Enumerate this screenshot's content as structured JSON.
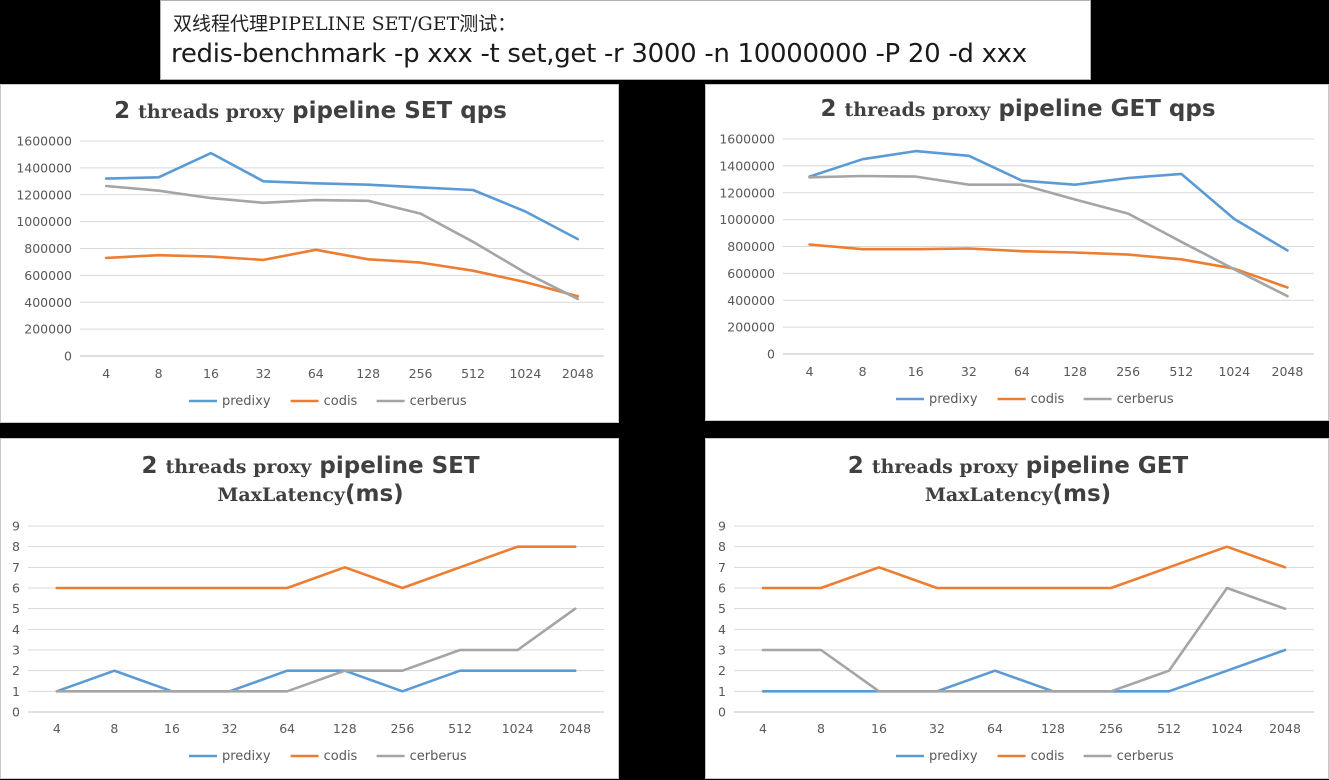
{
  "header": {
    "line1": "双线程代理PIPELINE SET/GET测试：",
    "line2": "redis-benchmark -p xxx -t set,get -r 3000 -n 10000000 -P 20 -d xxx"
  },
  "colors": {
    "predixy": "#5b9bd5",
    "codis": "#ed7d31",
    "cerberus": "#a5a5a5",
    "grid": "#d9d9d9",
    "text": "#595959"
  },
  "chart_data": [
    {
      "type": "line",
      "title": "2 threads proxy pipeline SET qps",
      "title_lines": [
        [
          {
            "t": "2 ",
            "f": "sans"
          },
          {
            "t": "threads proxy",
            "f": "serif"
          },
          {
            "t": " pipeline SET qps",
            "f": "sans"
          }
        ]
      ],
      "categories": [
        "4",
        "8",
        "16",
        "32",
        "64",
        "128",
        "256",
        "512",
        "1024",
        "2048"
      ],
      "yticks": [
        "0",
        "200000",
        "400000",
        "600000",
        "800000",
        "1000000",
        "1200000",
        "1400000",
        "1600000"
      ],
      "ylim": [
        0,
        1600000
      ],
      "grid": true,
      "legend_position": "bottom",
      "series": [
        {
          "name": "predixy",
          "values": [
            1320000,
            1330000,
            1510000,
            1300000,
            1285000,
            1275000,
            1255000,
            1235000,
            1075000,
            870000
          ]
        },
        {
          "name": "codis",
          "values": [
            730000,
            750000,
            740000,
            715000,
            790000,
            720000,
            695000,
            635000,
            550000,
            445000
          ]
        },
        {
          "name": "cerberus",
          "values": [
            1265000,
            1230000,
            1175000,
            1140000,
            1160000,
            1155000,
            1060000,
            850000,
            620000,
            425000
          ]
        }
      ]
    },
    {
      "type": "line",
      "title": "2 threads proxy pipeline GET qps",
      "title_lines": [
        [
          {
            "t": "2 ",
            "f": "sans"
          },
          {
            "t": "threads proxy",
            "f": "serif"
          },
          {
            "t": " pipeline GET qps",
            "f": "sans"
          }
        ]
      ],
      "categories": [
        "4",
        "8",
        "16",
        "32",
        "64",
        "128",
        "256",
        "512",
        "1024",
        "2048"
      ],
      "yticks": [
        "0",
        "200000",
        "400000",
        "600000",
        "800000",
        "1000000",
        "1200000",
        "1400000",
        "1600000"
      ],
      "ylim": [
        0,
        1600000
      ],
      "grid": true,
      "legend_position": "bottom",
      "series": [
        {
          "name": "predixy",
          "values": [
            1320000,
            1450000,
            1510000,
            1475000,
            1290000,
            1260000,
            1310000,
            1340000,
            1005000,
            770000
          ]
        },
        {
          "name": "codis",
          "values": [
            815000,
            780000,
            780000,
            785000,
            765000,
            755000,
            740000,
            705000,
            635000,
            495000
          ]
        },
        {
          "name": "cerberus",
          "values": [
            1315000,
            1325000,
            1320000,
            1260000,
            1260000,
            1150000,
            1045000,
            835000,
            630000,
            430000
          ]
        }
      ]
    },
    {
      "type": "line",
      "title": "2 threads proxy pipeline SET MaxLatency(ms)",
      "title_lines": [
        [
          {
            "t": "2 ",
            "f": "sans"
          },
          {
            "t": "threads proxy",
            "f": "serif"
          },
          {
            "t": " pipeline SET",
            "f": "sans"
          }
        ],
        [
          {
            "t": "MaxLatency",
            "f": "serif"
          },
          {
            "t": "(ms)",
            "f": "sans"
          }
        ]
      ],
      "categories": [
        "4",
        "8",
        "16",
        "32",
        "64",
        "128",
        "256",
        "512",
        "1024",
        "2048"
      ],
      "yticks": [
        "0",
        "1",
        "2",
        "3",
        "4",
        "5",
        "6",
        "7",
        "8",
        "9"
      ],
      "ylim": [
        0,
        9
      ],
      "grid": true,
      "legend_position": "bottom",
      "series": [
        {
          "name": "predixy",
          "values": [
            1,
            2,
            1,
            1,
            2,
            2,
            1,
            2,
            2,
            2
          ]
        },
        {
          "name": "codis",
          "values": [
            6,
            6,
            6,
            6,
            6,
            7,
            6,
            7,
            8,
            8
          ]
        },
        {
          "name": "cerberus",
          "values": [
            1,
            1,
            1,
            1,
            1,
            2,
            2,
            3,
            3,
            5
          ]
        }
      ]
    },
    {
      "type": "line",
      "title": "2 threads proxy pipeline GET MaxLatency(ms)",
      "title_lines": [
        [
          {
            "t": "2 ",
            "f": "sans"
          },
          {
            "t": "threads proxy",
            "f": "serif"
          },
          {
            "t": " pipeline GET",
            "f": "sans"
          }
        ],
        [
          {
            "t": "MaxLatency",
            "f": "serif"
          },
          {
            "t": "(ms)",
            "f": "sans"
          }
        ]
      ],
      "categories": [
        "4",
        "8",
        "16",
        "32",
        "64",
        "128",
        "256",
        "512",
        "1024",
        "2048"
      ],
      "yticks": [
        "0",
        "1",
        "2",
        "3",
        "4",
        "5",
        "6",
        "7",
        "8",
        "9"
      ],
      "ylim": [
        0,
        9
      ],
      "grid": true,
      "legend_position": "bottom",
      "series": [
        {
          "name": "predixy",
          "values": [
            1,
            1,
            1,
            1,
            2,
            1,
            1,
            1,
            2,
            3
          ]
        },
        {
          "name": "codis",
          "values": [
            6,
            6,
            7,
            6,
            6,
            6,
            6,
            7,
            8,
            7
          ]
        },
        {
          "name": "cerberus",
          "values": [
            3,
            3,
            1,
            1,
            1,
            1,
            1,
            2,
            6,
            5
          ]
        }
      ]
    }
  ]
}
